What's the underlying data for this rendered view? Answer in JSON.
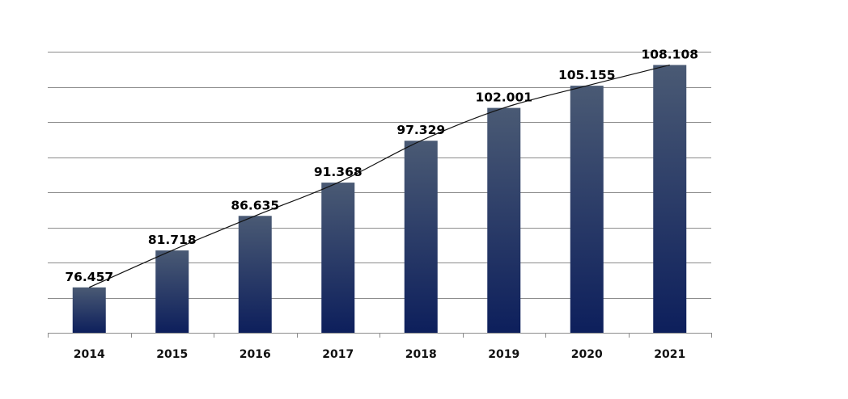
{
  "chart_data": {
    "type": "bar",
    "categories": [
      "2014",
      "2015",
      "2016",
      "2017",
      "2018",
      "2019",
      "2020",
      "2021"
    ],
    "values": [
      76.457,
      81.718,
      86.635,
      91.368,
      97.329,
      102.001,
      105.155,
      108.108
    ],
    "value_labels": [
      "76.457",
      "81.718",
      "86.635",
      "91.368",
      "97.329",
      "102.001",
      "105.155",
      "108.108"
    ],
    "title": "",
    "xlabel": "",
    "ylabel": "",
    "ylim": [
      70,
      110
    ],
    "grid": true,
    "gridlines": [
      75,
      80,
      85,
      90,
      95,
      100,
      105,
      110
    ],
    "trendline": true,
    "legend": "none",
    "colors": {
      "bar_top": "#4a5a74",
      "bar_bottom": "#0d1f5c",
      "grid": "#8c8c8c",
      "axis": "#8c8c8c",
      "trend": "#111111"
    }
  }
}
